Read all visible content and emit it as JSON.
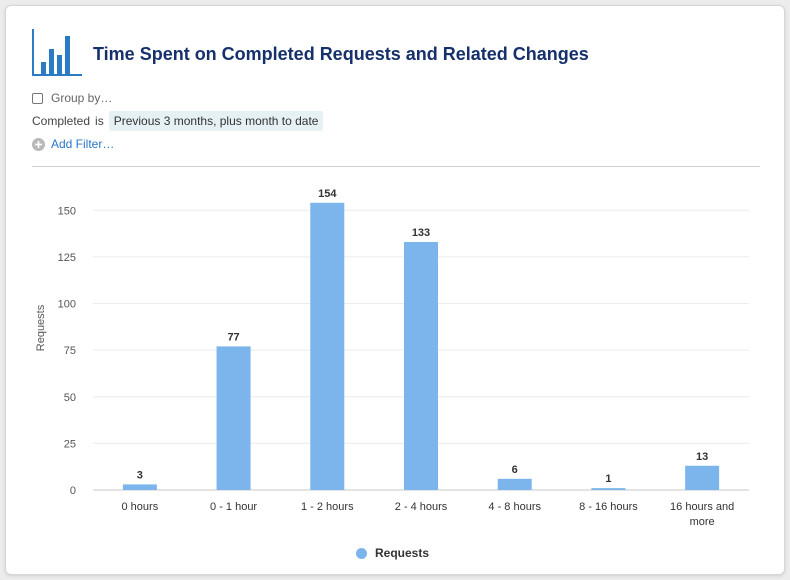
{
  "header": {
    "title": "Time Spent on Completed Requests and Related Changes",
    "icon": "bar-chart-icon"
  },
  "controls": {
    "group_by_label": "Group by…",
    "group_by_checked": false,
    "filter": {
      "field": "Completed",
      "operator": "is",
      "value": "Previous 3 months, plus month to date"
    },
    "add_filter_label": "Add Filter…",
    "add_filter_icon": "plus-circle-icon"
  },
  "colors": {
    "brand_title": "#16306b",
    "bar": "#7cb5ec",
    "link": "#2a76c9",
    "chip_bg": "#e5f1f4"
  },
  "chart_data": {
    "type": "bar",
    "categories": [
      "0 hours",
      "0 - 1 hour",
      "1 - 2 hours",
      "2 - 4 hours",
      "4 - 8 hours",
      "8 - 16 hours",
      "16 hours and more"
    ],
    "series": [
      {
        "name": "Requests",
        "values": [
          3,
          77,
          154,
          133,
          6,
          1,
          13
        ]
      }
    ],
    "ylabel": "Requests",
    "xlabel": "",
    "ylim": [
      0,
      150
    ],
    "yticks": [
      0,
      25,
      50,
      75,
      100,
      125,
      150
    ],
    "grid": true,
    "data_labels": true,
    "legend": "bottom-center"
  }
}
